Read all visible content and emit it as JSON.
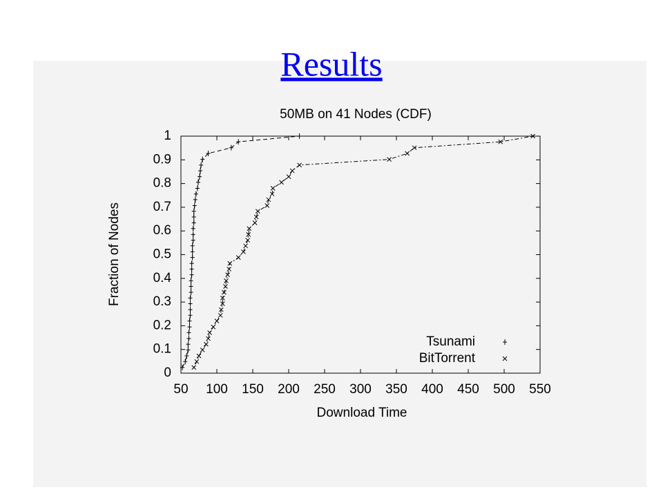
{
  "slide_title": "Results",
  "chart_data": {
    "type": "line",
    "title": "50MB on 41 Nodes (CDF)",
    "x_label": "Download Time",
    "y_label": "Fraction of Nodes",
    "xlim": [
      50,
      550
    ],
    "ylim": [
      0,
      1
    ],
    "xticks": [
      50,
      100,
      150,
      200,
      250,
      300,
      350,
      400,
      450,
      500,
      550
    ],
    "yticks": [
      0,
      0.1,
      0.2,
      0.3,
      0.4,
      0.5,
      0.6,
      0.7,
      0.8,
      0.9,
      1
    ],
    "legend": "lower right",
    "series": [
      {
        "name": "Tsunami",
        "color": "#000000",
        "marker": "+",
        "dash": "6,4",
        "x": [
          52,
          56,
          58,
          60,
          60,
          61,
          61,
          62,
          62,
          63,
          63,
          63,
          63,
          64,
          64,
          64,
          65,
          65,
          65,
          66,
          66,
          66,
          67,
          67,
          67,
          68,
          68,
          68,
          69,
          70,
          71,
          73,
          74,
          76,
          77,
          78,
          80,
          88,
          120,
          130,
          215
        ],
        "values": [
          0.024,
          0.049,
          0.073,
          0.098,
          0.122,
          0.146,
          0.171,
          0.195,
          0.22,
          0.244,
          0.268,
          0.293,
          0.317,
          0.341,
          0.366,
          0.39,
          0.415,
          0.439,
          0.463,
          0.488,
          0.512,
          0.537,
          0.561,
          0.585,
          0.61,
          0.634,
          0.659,
          0.683,
          0.707,
          0.732,
          0.756,
          0.78,
          0.805,
          0.829,
          0.854,
          0.878,
          0.902,
          0.927,
          0.951,
          0.976,
          1
        ]
      },
      {
        "name": "BitTorrent",
        "color": "#000000",
        "marker": "x",
        "dash": "2,3,6,3",
        "x": [
          68,
          72,
          75,
          80,
          85,
          88,
          90,
          95,
          100,
          105,
          106,
          108,
          108,
          110,
          112,
          113,
          115,
          117,
          118,
          130,
          137,
          140,
          143,
          144,
          145,
          153,
          155,
          157,
          170,
          172,
          177,
          178,
          190,
          200,
          205,
          215,
          340,
          365,
          375,
          495,
          540
        ],
        "values": [
          0.024,
          0.049,
          0.073,
          0.098,
          0.122,
          0.146,
          0.171,
          0.195,
          0.22,
          0.244,
          0.268,
          0.293,
          0.317,
          0.341,
          0.366,
          0.39,
          0.415,
          0.439,
          0.463,
          0.488,
          0.512,
          0.537,
          0.561,
          0.585,
          0.61,
          0.634,
          0.659,
          0.683,
          0.707,
          0.732,
          0.756,
          0.78,
          0.805,
          0.829,
          0.854,
          0.878,
          0.902,
          0.927,
          0.951,
          0.976,
          1
        ]
      }
    ]
  }
}
